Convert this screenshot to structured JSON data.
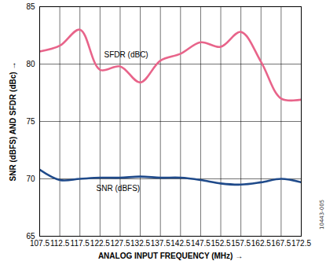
{
  "chart_data": {
    "type": "line",
    "x_label": "ANALOG INPUT FREQUENCY (MHz)",
    "y_label": "SNR (dBFS) AND SFDR (dBc)",
    "x": [
      107.5,
      112.5,
      117.5,
      122.5,
      127.5,
      132.5,
      137.5,
      142.5,
      147.5,
      152.5,
      157.5,
      162.5,
      167.5,
      172.5
    ],
    "series": [
      {
        "name": "SFDR (dBC)",
        "color": "#e8648a",
        "values": [
          81.1,
          81.6,
          83.0,
          79.5,
          79.8,
          78.4,
          80.3,
          80.9,
          81.9,
          81.5,
          82.8,
          80.2,
          77.0,
          76.9
        ]
      },
      {
        "name": "SNR (dBFS)",
        "color": "#1f4a8a",
        "values": [
          70.8,
          69.9,
          70.0,
          70.1,
          70.1,
          70.2,
          70.1,
          70.1,
          69.9,
          69.6,
          69.5,
          69.7,
          70.0,
          69.7
        ]
      }
    ],
    "annotations": [
      {
        "text": "SFDR (dBC)",
        "x": 129,
        "y": 80.8
      },
      {
        "text": "SNR (dBFS)",
        "x": 127,
        "y": 69.15
      },
      {
        "text": "10443-005"
      }
    ],
    "xlim": [
      107.5,
      172.5
    ],
    "xticks": [
      107.5,
      112.5,
      117.5,
      122.5,
      127.5,
      132.5,
      137.5,
      142.5,
      147.5,
      152.5,
      157.5,
      162.5,
      167.5,
      172.5
    ],
    "ylim": [
      65,
      85
    ],
    "yticks": [
      65,
      70,
      75,
      80,
      85
    ],
    "grid": true
  }
}
